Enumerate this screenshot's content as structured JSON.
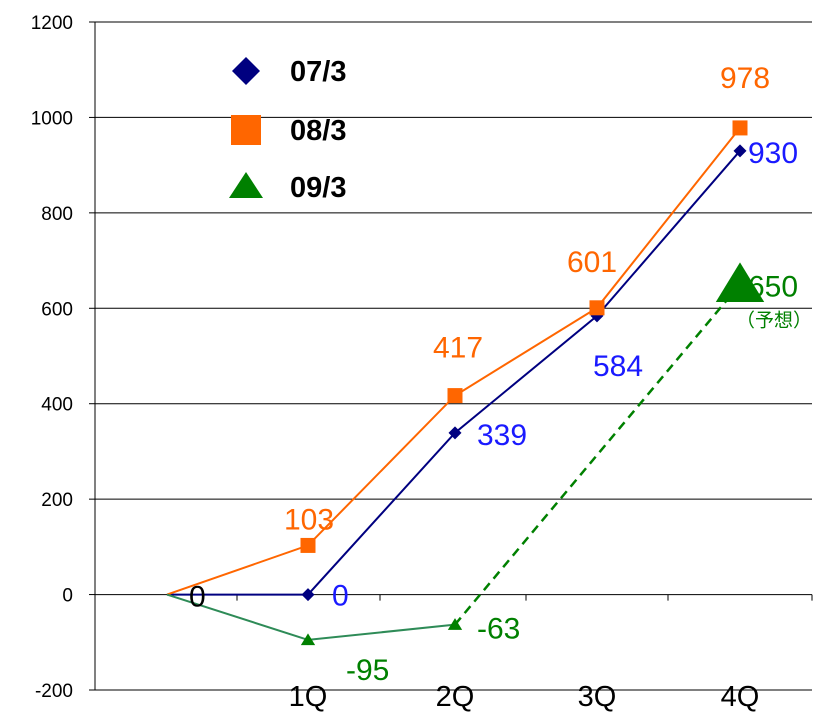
{
  "chart_data": {
    "type": "line",
    "title": "",
    "xlabel": "",
    "ylabel": "",
    "categories": [
      "",
      "1Q",
      "2Q",
      "3Q",
      "4Q"
    ],
    "ylim": [
      -200,
      1200
    ],
    "yticks": [
      "-200",
      "0",
      "200",
      "400",
      "600",
      "800",
      "1000",
      "1200"
    ],
    "grid": true,
    "legend_position": "top-left",
    "series": [
      {
        "name": "07/3",
        "color": "#000080",
        "marker": "diamond",
        "values": [
          0,
          0,
          339,
          584,
          930
        ],
        "labels": [
          "",
          "0",
          "339",
          "584",
          "930"
        ],
        "label_color": "#1a1aff"
      },
      {
        "name": "08/3",
        "color": "#ff6600",
        "marker": "square",
        "values": [
          0,
          103,
          417,
          601,
          978
        ],
        "labels": [
          "0",
          "103",
          "417",
          "601",
          "978"
        ],
        "label_color": "#ff6600"
      },
      {
        "name": "09/3",
        "color": "#008000",
        "line_color": "#2e8b57",
        "marker": "triangle",
        "values": [
          0,
          -95,
          -63,
          null,
          650
        ],
        "labels": [
          "",
          "-95",
          "-63",
          "",
          "650"
        ],
        "label_color": "#008000",
        "forecast_note": "（予想）"
      }
    ]
  }
}
